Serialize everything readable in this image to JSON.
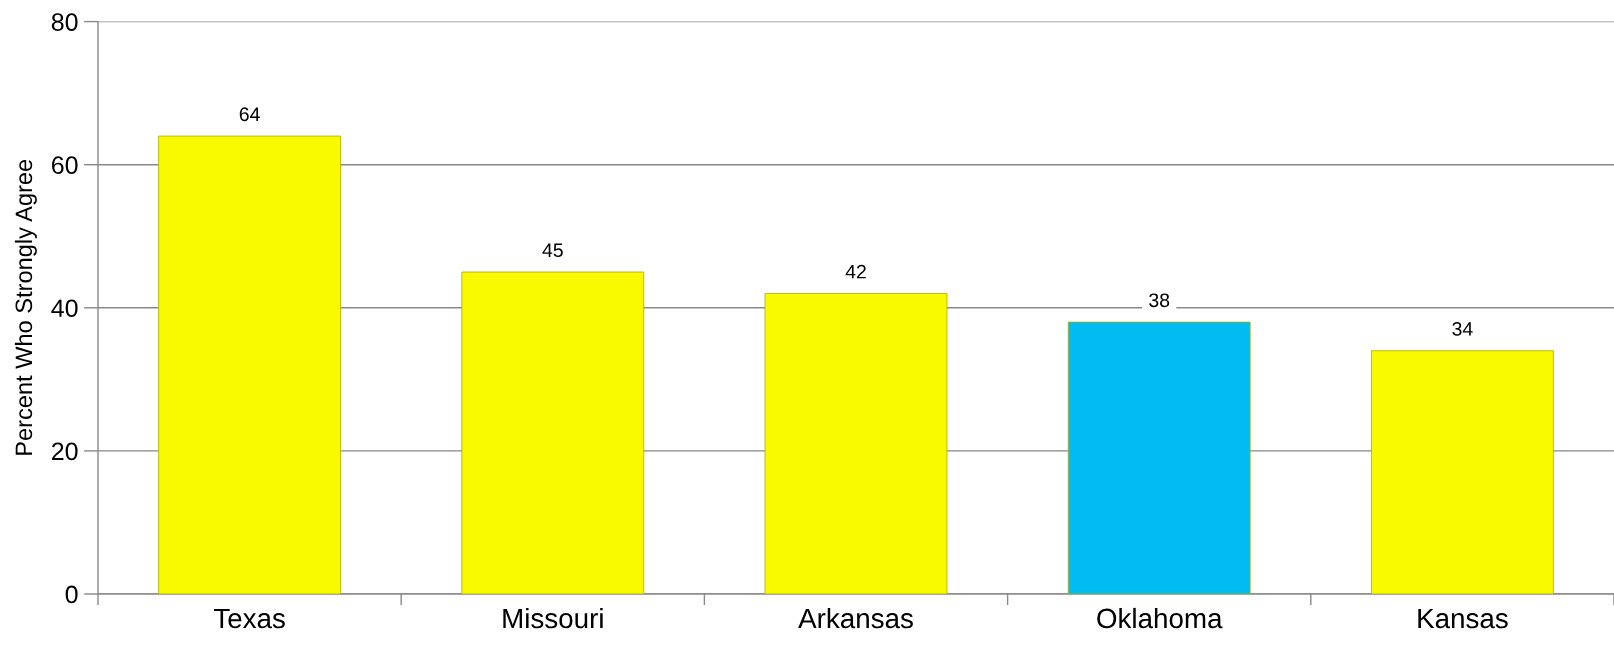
{
  "chart_data": {
    "type": "bar",
    "ylabel": "Percent Who Strongly Agree",
    "categories": [
      "Texas",
      "Missouri",
      "Arkansas",
      "Oklahoma",
      "Kansas"
    ],
    "values": [
      64,
      45,
      42,
      38,
      34
    ],
    "colors": [
      "#f9f900",
      "#f9f900",
      "#f9f900",
      "#00bcf2",
      "#f9f900"
    ],
    "ylim": [
      0,
      80
    ],
    "yticks": [
      0,
      20,
      40,
      60,
      80
    ],
    "grid": "y",
    "data_labels": true
  }
}
